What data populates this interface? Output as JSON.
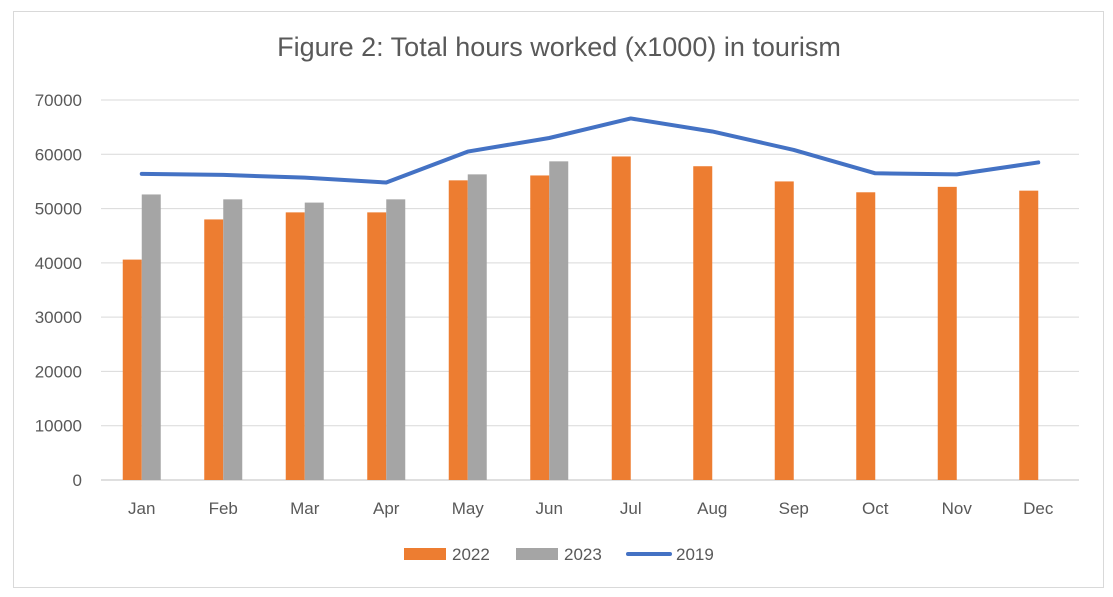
{
  "chart_data": {
    "type": "bar",
    "title": "Figure 2: Total hours worked (x1000) in tourism",
    "categories": [
      "Jan",
      "Feb",
      "Mar",
      "Apr",
      "May",
      "Jun",
      "Jul",
      "Aug",
      "Sep",
      "Oct",
      "Nov",
      "Dec"
    ],
    "series": [
      {
        "name": "2022",
        "type": "bar",
        "color": "#ed7d31",
        "values": [
          40600,
          48000,
          49300,
          49300,
          55200,
          56100,
          59600,
          57800,
          55000,
          53000,
          54000,
          53300
        ]
      },
      {
        "name": "2023",
        "type": "bar",
        "color": "#a5a5a5",
        "values": [
          52600,
          51700,
          51100,
          51700,
          56300,
          58700,
          null,
          null,
          null,
          null,
          null,
          null
        ]
      },
      {
        "name": "2019",
        "type": "line",
        "color": "#4472c4",
        "values": [
          56400,
          56200,
          55700,
          54800,
          60500,
          63000,
          66600,
          64200,
          60800,
          56500,
          56300,
          58500
        ]
      }
    ],
    "ylim": [
      0,
      70000
    ],
    "yticks": [
      0,
      10000,
      20000,
      30000,
      40000,
      50000,
      60000,
      70000
    ],
    "grid": true,
    "legend_position": "bottom"
  }
}
